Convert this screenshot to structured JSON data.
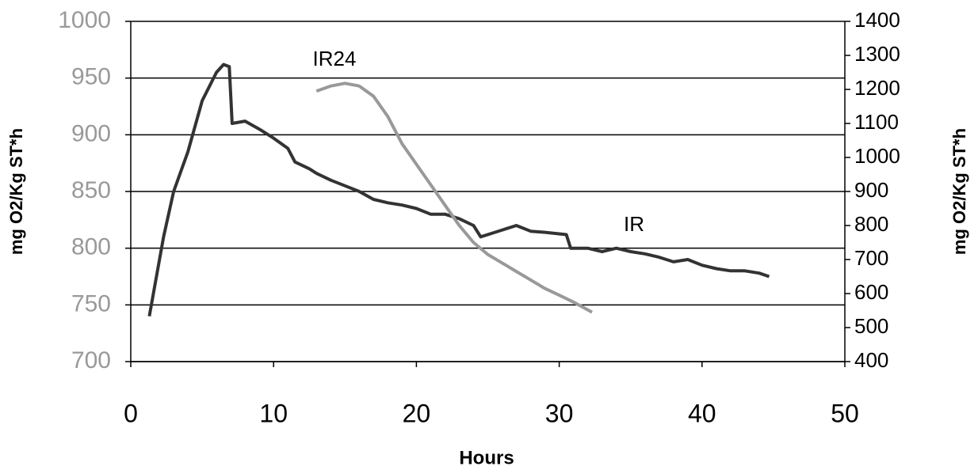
{
  "chart_data": {
    "type": "line",
    "x_label": "Hours",
    "y_label": "mg O2/Kg ST*h",
    "y2_label": "mg O2/Kg ST*h",
    "xlim": [
      0,
      50
    ],
    "xticks": [
      0,
      10,
      20,
      30,
      40,
      50
    ],
    "ylim": [
      700,
      1000
    ],
    "yticks": [
      700,
      750,
      800,
      850,
      900,
      950,
      1000
    ],
    "y2lim": [
      400,
      1400
    ],
    "y2ticks": [
      400,
      500,
      600,
      700,
      800,
      900,
      1000,
      1100,
      1200,
      1300,
      1400
    ],
    "grid": true,
    "series": [
      {
        "name": "IR",
        "color": "#333333",
        "x": [
          1.3,
          2.3,
          3,
          4,
          5,
          6,
          6.5,
          6.9,
          7.1,
          8,
          9,
          10,
          11,
          11.5,
          12.5,
          13,
          14,
          15,
          16,
          17,
          18,
          19,
          20,
          21,
          22,
          23,
          24,
          24.5,
          25.5,
          27,
          28,
          29,
          30.5,
          30.8,
          32,
          33,
          34,
          35,
          36,
          37,
          38,
          39,
          40,
          41,
          42,
          43,
          44,
          44.7
        ],
        "values": [
          740,
          810,
          850,
          885,
          930,
          955,
          962,
          960,
          910,
          912,
          905,
          897,
          888,
          876,
          870,
          866,
          860,
          855,
          850,
          843,
          840,
          838,
          835,
          830,
          830,
          826,
          820,
          810,
          814,
          820,
          815,
          814,
          812,
          800,
          800,
          797,
          800,
          797,
          795,
          792,
          788,
          790,
          785,
          782,
          780,
          780,
          778,
          775
        ]
      },
      {
        "name": "IR24",
        "color": "#999999",
        "axis": "y2",
        "x": [
          13,
          14,
          15,
          16,
          17,
          18,
          19,
          20,
          21,
          22,
          23,
          24,
          25,
          26,
          27,
          28,
          29,
          30,
          31,
          32,
          32.3
        ],
        "values": [
          1195,
          1210,
          1218,
          1210,
          1180,
          1120,
          1040,
          980,
          920,
          860,
          800,
          750,
          715,
          690,
          665,
          640,
          615,
          595,
          575,
          552,
          545
        ]
      }
    ]
  }
}
